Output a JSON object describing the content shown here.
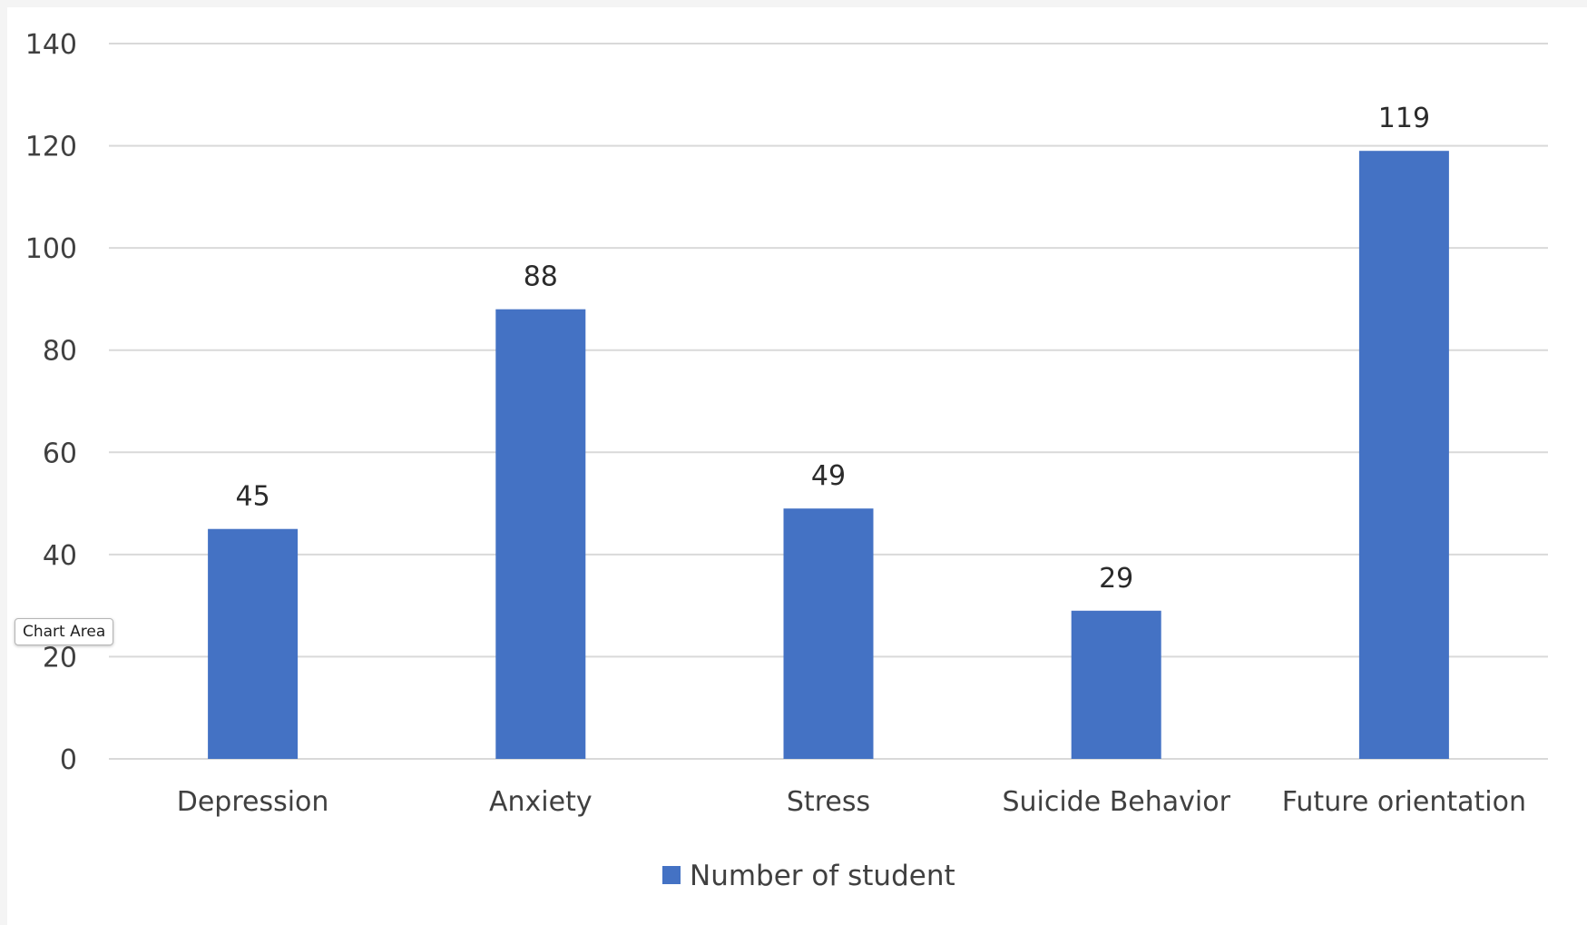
{
  "chart_data": {
    "type": "bar",
    "categories": [
      "Depression",
      "Anxiety",
      "Stress",
      "Suicide Behavior",
      "Future orientation"
    ],
    "series": [
      {
        "name": "Number of student",
        "values": [
          45,
          88,
          49,
          29,
          119
        ],
        "color": "#4472c4"
      }
    ],
    "data_labels": [
      "45",
      "88",
      "49",
      "29",
      "119"
    ],
    "yticks": [
      "0",
      "20",
      "40",
      "60",
      "80",
      "100",
      "120",
      "140"
    ],
    "ylim": [
      0,
      140
    ],
    "grid": true,
    "legend_position": "bottom",
    "title": "",
    "xlabel": "",
    "ylabel": ""
  },
  "colors": {
    "bar": "#4472c4",
    "gridline": "#d9d9d9",
    "text": "#404040"
  },
  "tooltip": {
    "text": "Chart Area"
  }
}
